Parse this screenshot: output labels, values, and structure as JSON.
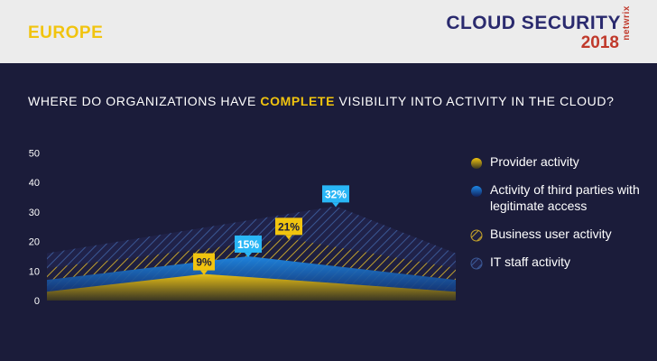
{
  "header": {
    "region": "EUROPE",
    "brand_title": "CLOUD SECURITY",
    "brand_year": "2018",
    "brand_logo": "netwrix"
  },
  "question": {
    "before": "WHERE DO ORGANIZATIONS HAVE ",
    "highlight": "COMPLETE",
    "after": " VISIBILITY INTO ACTIVITY IN THE CLOUD?"
  },
  "colors": {
    "background": "#1b1c3a",
    "yellow": "#f1c40f",
    "blue": "#1e88e5",
    "brand_red": "#c0392b",
    "brand_navy": "#2a2a6e"
  },
  "chart_data": {
    "type": "area",
    "title": "WHERE DO ORGANIZATIONS HAVE COMPLETE VISIBILITY INTO ACTIVITY IN THE CLOUD?",
    "y_ticks": [
      0,
      10,
      20,
      30,
      40,
      50
    ],
    "ylim": [
      0,
      50
    ],
    "series": [
      {
        "name": "IT staff activity",
        "peak": 32,
        "edges": 16,
        "label": "32%",
        "style": "blue-hatch",
        "icon": "blue-hatch-icon"
      },
      {
        "name": "Business user activity",
        "peak": 21,
        "edges": 11,
        "label": "21%",
        "style": "yellow-hatch",
        "icon": "yellow-hatch-icon"
      },
      {
        "name": "Activity of third parties with legitimate access",
        "peak": 15,
        "edges": 7,
        "label": "15%",
        "style": "blue-solid",
        "icon": "blue-dot-icon"
      },
      {
        "name": "Provider activity",
        "peak": 9,
        "edges": 3,
        "label": "9%",
        "style": "yellow-solid",
        "icon": "yellow-dot-icon"
      }
    ],
    "legend": [
      "Provider activity",
      "Activity of third parties with legitimate access",
      "Business user activity",
      "IT staff activity"
    ]
  }
}
